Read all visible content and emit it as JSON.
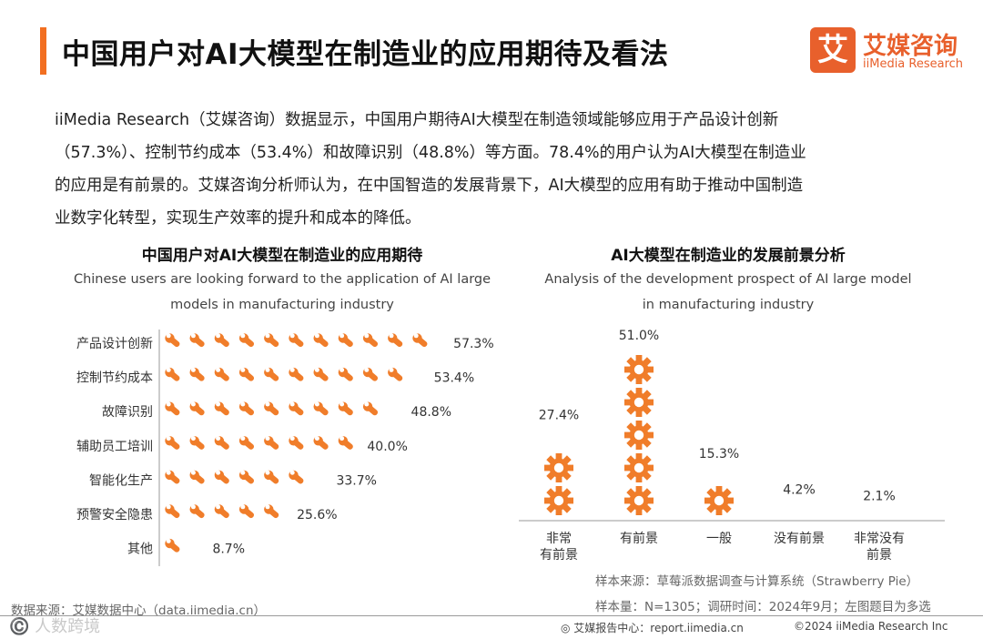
{
  "header": {
    "title": "中国用户对AI大模型在制造业的应用期待及看法",
    "logo_mark": "艾",
    "logo_cn": "艾媒咨询",
    "logo_en": "iiMedia Research"
  },
  "intro": [
    "iiMedia Research（艾媒咨询）数据显示，中国用户期待AI大模型在制造领域能够应用于产品设计创新",
    "（57.3%）、控制节约成本（53.4%）和故障识别（48.8%）等方面。78.4%的用户认为AI大模型在制造业",
    "的应用是有前景的。艾媒咨询分析师认为，在中国智造的发展背景下，AI大模型的应用有助于推动中国制造",
    "业数字化转型，实现生产效率的提升和成本的降低。"
  ],
  "colors": {
    "accent": "#f26f21",
    "icon": "#f07d2a"
  },
  "chart_data": [
    {
      "type": "bar",
      "icon": "wrench-icon",
      "title": "中国用户对AI大模型在制造业的应用期待",
      "subtitle": [
        "Chinese users are looking forward to the application of AI large",
        "models in manufacturing industry"
      ],
      "categories": [
        "产品设计创新",
        "控制节约成本",
        "故障识别",
        "辅助员工培训",
        "智能化生产",
        "预警安全隐患",
        "其他"
      ],
      "values": [
        57.3,
        53.4,
        48.8,
        40.0,
        33.7,
        25.6,
        8.7
      ],
      "value_labels": [
        "57.3%",
        "53.4%",
        "48.8%",
        "40.0%",
        "33.7%",
        "25.6%",
        "8.7%"
      ],
      "unit_per_icon": 5
    },
    {
      "type": "bar",
      "icon": "gear-icon",
      "title": "AI大模型在制造业的发展前景分析",
      "subtitle": [
        "Analysis of the development prospect of AI large model",
        "in  manufacturing industry"
      ],
      "categories": [
        [
          "非常",
          "有前景"
        ],
        [
          "有前景"
        ],
        [
          "一般"
        ],
        [
          "没有前景"
        ],
        [
          "非常没有",
          "前景"
        ]
      ],
      "values": [
        27.4,
        51.0,
        15.3,
        4.2,
        2.1
      ],
      "value_labels": [
        "27.4%",
        "51.0%",
        "15.3%",
        "4.2%",
        "2.1%"
      ],
      "unit_per_icon": 10
    }
  ],
  "notes": {
    "source_left": "数据来源：艾媒数据中心（data.iimedia.cn）",
    "sample_source": "样本来源：草莓派数据调查与计算系统（Strawberry Pie）",
    "sample_size": "样本量：N=1305；调研时间：2024年9月；左图题目为多选"
  },
  "footer": {
    "watermark": "©️ 人数跨境",
    "center": "艾媒报告中心：report.iimedia.cn",
    "right": "©2024 iiMedia Research Inc"
  }
}
